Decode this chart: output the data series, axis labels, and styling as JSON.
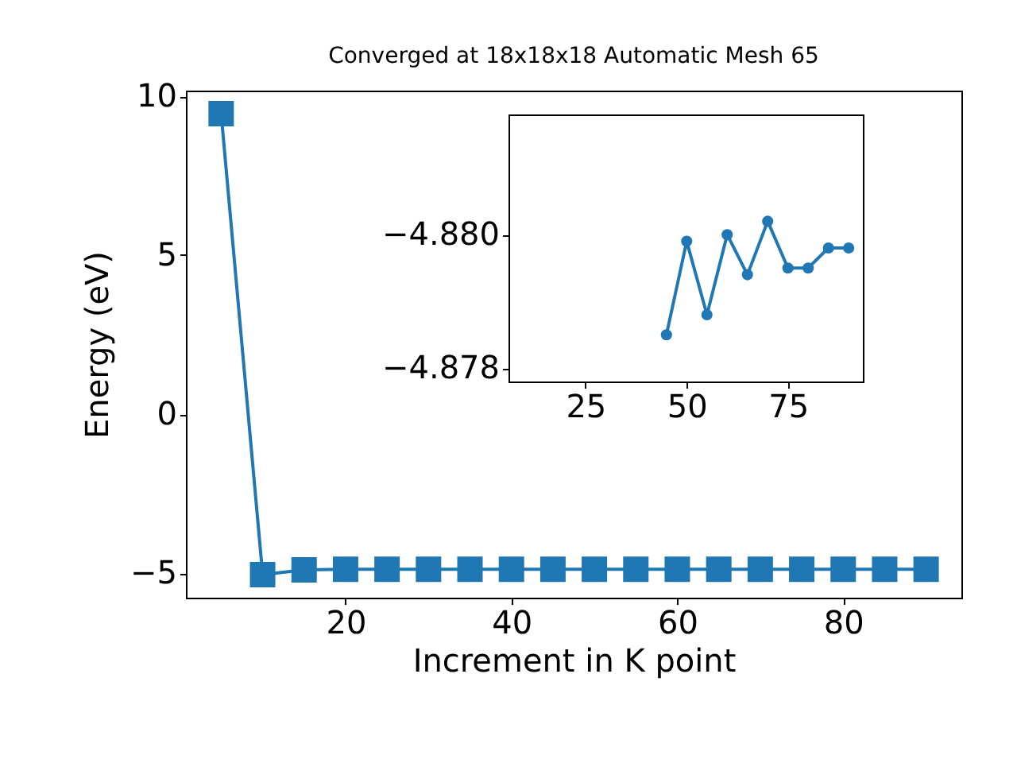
{
  "chart_data": [
    {
      "type": "line",
      "title": "Converged at 18x18x18 Automatic Mesh 65",
      "xlabel": "Increment in K point",
      "ylabel": "Energy (eV)",
      "marker": "square",
      "grid": false,
      "xlim": [
        0.75,
        94.25
      ],
      "ylim": [
        -5.775,
        10.175
      ],
      "xticks": [
        20,
        40,
        60,
        80
      ],
      "yticks": [
        {
          "value": -5,
          "label": "−5"
        },
        0,
        5,
        10
      ],
      "series": [
        {
          "color": "#1f77b4",
          "x": [
            5,
            10,
            15,
            20,
            25,
            30,
            35,
            40,
            45,
            50,
            55,
            60,
            65,
            70,
            75,
            80,
            85,
            90
          ],
          "values": [
            9.45,
            -5.05,
            -4.9,
            -4.88,
            -4.88,
            -4.88,
            -4.88,
            -4.88,
            -4.88,
            -4.88,
            -4.88,
            -4.88,
            -4.88,
            -4.88,
            -4.88,
            -4.88,
            -4.88,
            -4.88
          ]
        }
      ]
    },
    {
      "type": "line",
      "marker": "circle",
      "grid": false,
      "xlim": [
        6,
        93.5
      ],
      "ylim": [
        -4.8778,
        -4.8818
      ],
      "xticks": [
        25,
        50,
        75
      ],
      "yticks": [
        {
          "value": -4.88,
          "label": "−4.880"
        },
        {
          "value": -4.878,
          "label": "−4.878"
        }
      ],
      "series": [
        {
          "color": "#1f77b4",
          "x": [
            45,
            50,
            55,
            60,
            65,
            70,
            75,
            80,
            85,
            90
          ],
          "values": [
            -4.8785,
            -4.8799,
            -4.8788,
            -4.88,
            -4.8794,
            -4.8802,
            -4.8795,
            -4.8795,
            -4.8798,
            -4.8798
          ]
        }
      ]
    }
  ]
}
